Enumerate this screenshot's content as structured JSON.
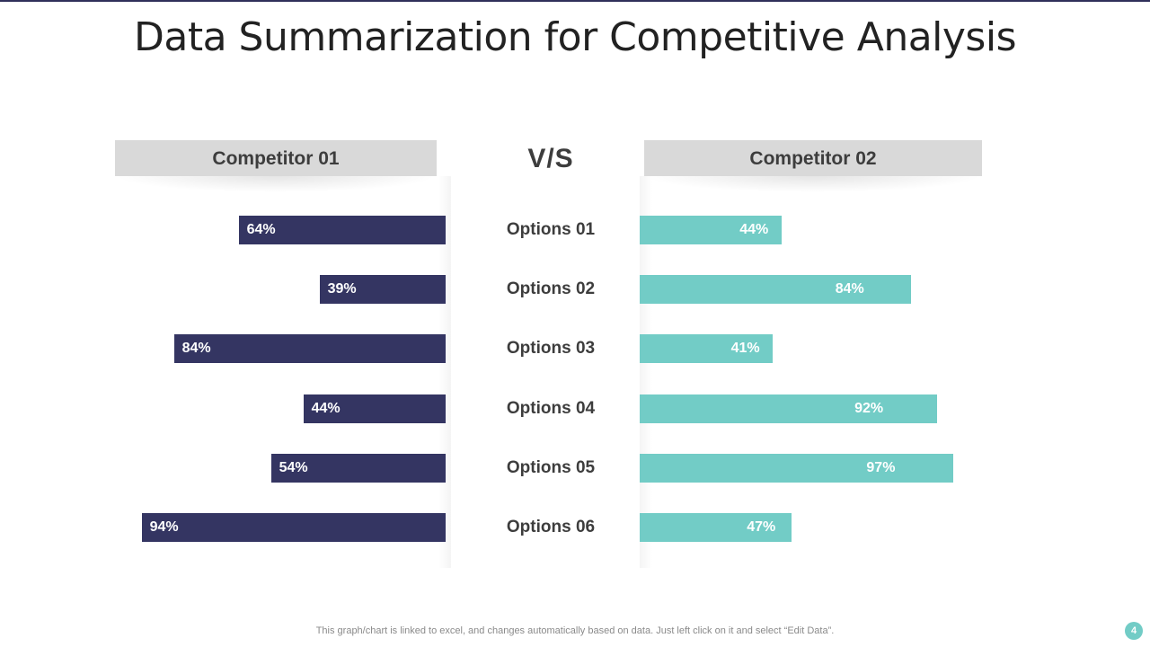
{
  "title": "Data Summarization for Competitive Analysis",
  "vs_label": "V/S",
  "footnote": "This graph/chart is linked to excel,  and changes automatically based on data. Just left click on it and select “Edit Data”.",
  "page_number": "4",
  "colors": {
    "competitor_01": "#343562",
    "competitor_02": "#72ccc6",
    "header_bg": "#d9d9d9"
  },
  "chart_data": {
    "type": "bar",
    "orientation": "horizontal-butterfly",
    "title": "Data Summarization for Competitive Analysis",
    "categories": [
      "Options 01",
      "Options 02",
      "Options 03",
      "Options 04",
      "Options 05",
      "Options 06"
    ],
    "series": [
      {
        "name": "Competitor 01",
        "values": [
          64,
          39,
          84,
          44,
          54,
          94
        ],
        "labels": [
          "64%",
          "39%",
          "84%",
          "44%",
          "54%",
          "94%"
        ]
      },
      {
        "name": "Competitor 02",
        "values": [
          44,
          84,
          41,
          92,
          97,
          47
        ],
        "labels": [
          "44%",
          "84%",
          "41%",
          "92%",
          "97%",
          "47%"
        ]
      }
    ],
    "unit": "%",
    "xlim": [
      0,
      100
    ],
    "xlabel": "",
    "ylabel": "",
    "grid": false
  }
}
